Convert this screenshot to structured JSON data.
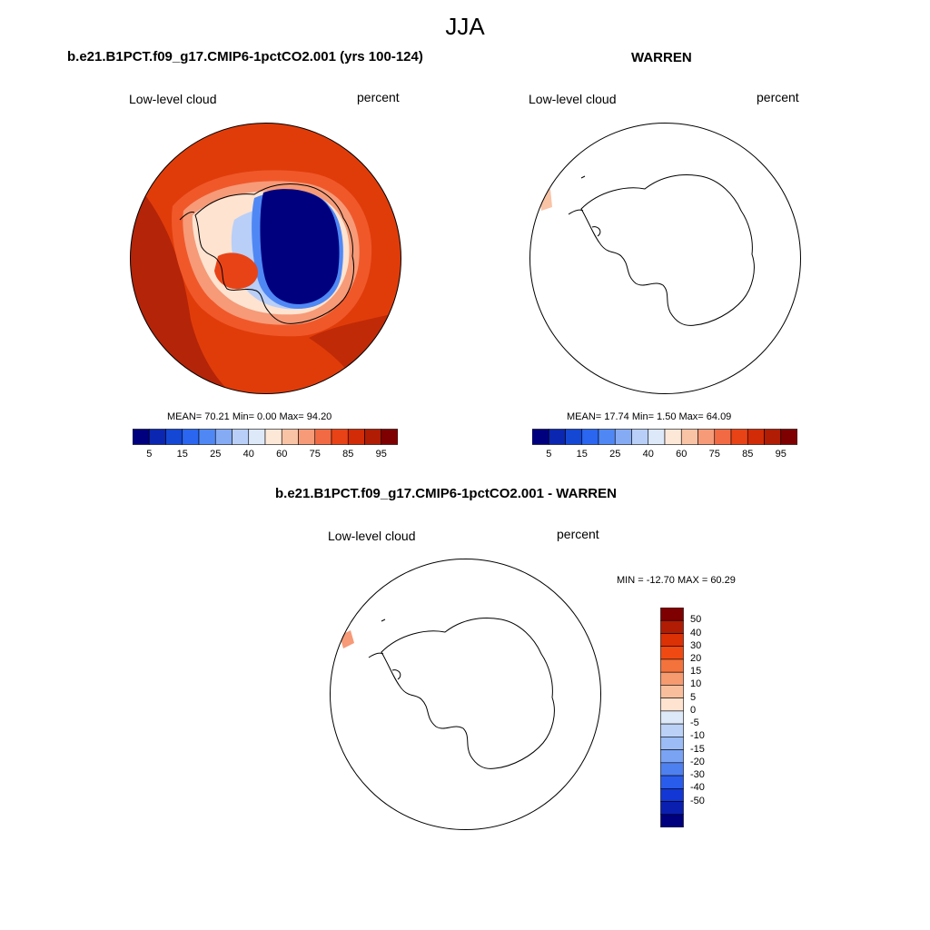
{
  "figure_title": "JJA",
  "panels": [
    {
      "title": "b.e21.B1PCT.f09_g17.CMIP6-1pctCO2.001 (yrs 100-124)",
      "left_label": "Low-level cloud",
      "right_label": "percent",
      "stats": "MEAN=  70.21  Min=   0.00  Max=  94.20",
      "colorbar_ticks": [
        "5",
        "15",
        "25",
        "40",
        "60",
        "75",
        "85",
        "95"
      ]
    },
    {
      "title": "WARREN",
      "left_label": "Low-level cloud",
      "right_label": "percent",
      "stats": "MEAN=  17.74  Min=   1.50  Max=  64.09",
      "colorbar_ticks": [
        "5",
        "15",
        "25",
        "40",
        "60",
        "75",
        "85",
        "95"
      ]
    },
    {
      "title": "b.e21.B1PCT.f09_g17.CMIP6-1pctCO2.001 - WARREN",
      "left_label": "Low-level cloud",
      "right_label": "percent",
      "stats": "MIN = -12.70 MAX =  60.29",
      "colorbar_ticks": [
        "50",
        "40",
        "30",
        "20",
        "15",
        "10",
        "5",
        "0",
        "-5",
        "-10",
        "-15",
        "-20",
        "-30",
        "-40",
        "-50"
      ]
    }
  ],
  "colors": {
    "seq_colorbar": [
      "#00007f",
      "#0b26b0",
      "#1447d4",
      "#2a66f0",
      "#4f88f5",
      "#86abf5",
      "#b9cff7",
      "#dde8f8",
      "#fde8d8",
      "#f9c3a6",
      "#f69a78",
      "#f26a43",
      "#e84317",
      "#d12b07",
      "#b01c04",
      "#7f0000"
    ],
    "div_colorbar": [
      "#7f0000",
      "#b01c04",
      "#dc3005",
      "#f04a12",
      "#f4733c",
      "#f69a70",
      "#f9bf9c",
      "#fde3d0",
      "#dde8f8",
      "#bcd1f6",
      "#9bbcf5",
      "#7aa3f3",
      "#4f80f0",
      "#2a5cec",
      "#1237d4",
      "#0a1eb0",
      "#00007f"
    ]
  }
}
